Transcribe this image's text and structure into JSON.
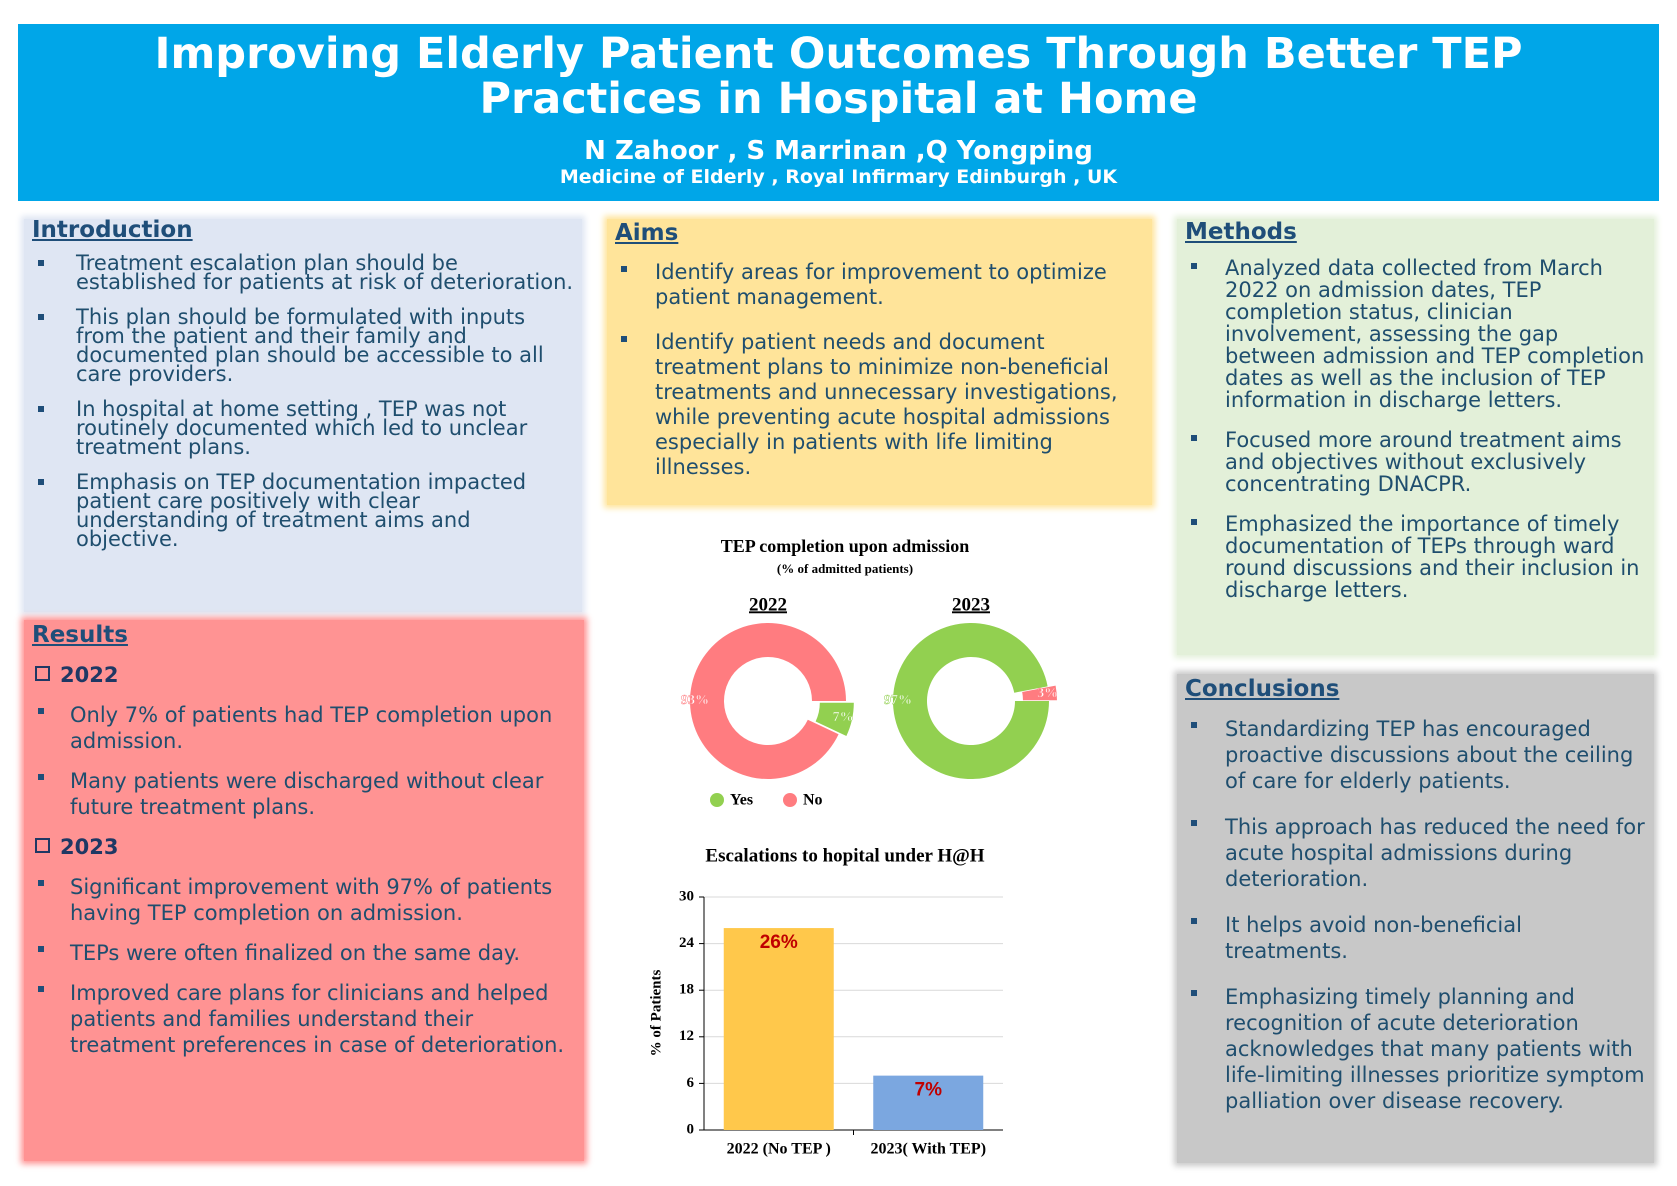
{
  "header": {
    "title": "Improving Elderly Patient Outcomes Through Better TEP Practices in Hospital at Home",
    "authors": "N Zahoor , S Marrinan ,Q Yongping",
    "affiliation": "Medicine of Elderly , Royal Infirmary Edinburgh , UK"
  },
  "introduction": {
    "heading": "Introduction",
    "items": [
      "Treatment escalation plan should be established for patients at risk of deterioration.",
      "This plan should be formulated with inputs from the patient and their family and documented plan should be accessible to all care providers.",
      "In hospital at home setting , TEP was not routinely documented which led to unclear treatment plans.",
      "Emphasis on TEP documentation impacted patient care positively with clear understanding of treatment aims and objective."
    ]
  },
  "aims": {
    "heading": "Aims",
    "items": [
      "Identify areas for improvement to optimize patient management.",
      "Identify patient needs and document treatment plans to minimize non-beneficial treatments and unnecessary investigations, while preventing acute hospital admissions especially in patients with life limiting illnesses."
    ]
  },
  "methods": {
    "heading": "Methods",
    "items": [
      "Analyzed data collected from March 2022 on admission dates, TEP completion status, clinician involvement, assessing the gap between admission and TEP completion dates  as well as the inclusion of TEP information in discharge letters.",
      "Focused more around treatment aims and objectives without exclusively concentrating DNACPR.",
      "Emphasized the importance of timely documentation of TEPs through ward round discussions and their inclusion in discharge letters."
    ]
  },
  "results": {
    "heading": "Results",
    "groups": [
      {
        "year": "2022",
        "items": [
          "Only 7% of patients had TEP completion upon admission.",
          "Many patients were discharged without clear future treatment plans."
        ]
      },
      {
        "year": "2023",
        "items": [
          "Significant improvement with 97% of patients having TEP completion on admission.",
          "TEPs were often finalized on the same day.",
          "Improved care plans for clinicians and helped patients and families understand their treatment preferences in case of deterioration."
        ]
      }
    ]
  },
  "conclusions": {
    "heading": "Conclusions",
    "items": [
      "Standardizing TEP has encouraged proactive discussions about the ceiling of care for elderly patients.",
      "This approach has reduced the need for acute hospital admissions during deterioration.",
      "It helps avoid non-beneficial treatments.",
      "Emphasizing timely planning and recognition of acute deterioration acknowledges that many patients with life-limiting illnesses prioritize symptom palliation over disease recovery."
    ]
  },
  "chart_data": [
    {
      "type": "donut",
      "title": "TEP completion upon admission",
      "subtitle": "(% of admitted patients)",
      "categories": [
        "Yes",
        "No"
      ],
      "colors": [
        "#92d050",
        "#ff7c80"
      ],
      "series": [
        {
          "name": "2022",
          "values": [
            7,
            93
          ],
          "value_labels": [
            "7%",
            "93%"
          ]
        },
        {
          "name": "2023",
          "values": [
            97,
            3
          ],
          "value_labels": [
            "97%",
            "3%"
          ]
        }
      ]
    },
    {
      "type": "bar",
      "title": "Escalations to hopital under H@H",
      "ylabel": "% of Patients",
      "categories": [
        "2022 (No TEP )",
        "2023( With TEP)"
      ],
      "values": [
        26,
        7
      ],
      "value_labels": [
        "26%",
        "7%"
      ],
      "colors": [
        "#ffc84b",
        "#7ba7e0"
      ],
      "ylim": [
        0,
        30
      ],
      "yticks": [
        0,
        6,
        12,
        18,
        24,
        30
      ],
      "grid": true
    }
  ]
}
